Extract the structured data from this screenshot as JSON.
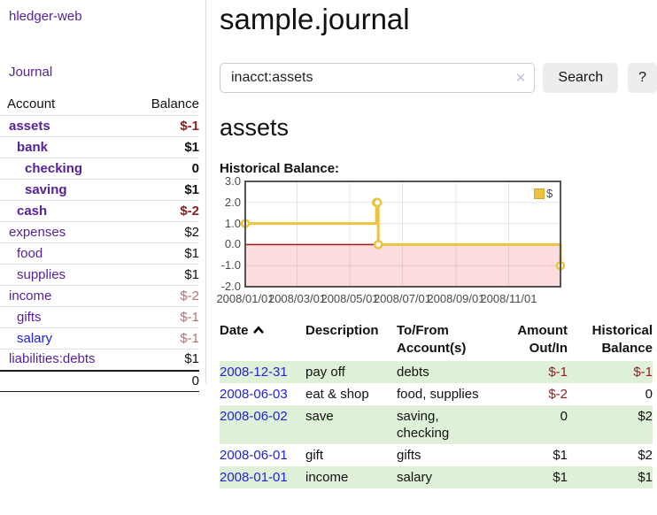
{
  "app": {
    "title": "hledger-web",
    "nav_journal": "Journal"
  },
  "sidebar": {
    "accounts_table": {
      "col_account": "Account",
      "col_balance": "Balance",
      "rows": [
        {
          "name": "assets",
          "depth": 1,
          "bold": true,
          "balance": "$-1",
          "neg": "strong"
        },
        {
          "name": "bank",
          "depth": 2,
          "bold": true,
          "balance": "$1"
        },
        {
          "name": "checking",
          "depth": 3,
          "bold": true,
          "balance": "0"
        },
        {
          "name": "saving",
          "depth": 3,
          "bold": true,
          "balance": "$1"
        },
        {
          "name": "cash",
          "depth": 2,
          "bold": true,
          "balance": "$-2",
          "neg": "strong"
        },
        {
          "name": "expenses",
          "depth": 1,
          "bold": false,
          "balance": "$2"
        },
        {
          "name": "food",
          "depth": 2,
          "bold": false,
          "balance": "$1"
        },
        {
          "name": "supplies",
          "depth": 2,
          "bold": false,
          "balance": "$1"
        },
        {
          "name": "income",
          "depth": 1,
          "bold": false,
          "balance": "$-2",
          "neg": "soft"
        },
        {
          "name": "gifts",
          "depth": 2,
          "bold": false,
          "balance": "$-1",
          "neg": "soft"
        },
        {
          "name": "salary",
          "depth": 2,
          "bold": false,
          "balance": "$-1",
          "neg": "soft",
          "link_color": "blue"
        },
        {
          "name": "liabilities:debts",
          "depth": 1,
          "bold": false,
          "balance": "$1"
        }
      ],
      "total": "0"
    }
  },
  "header": {
    "title": "sample.journal"
  },
  "search": {
    "value": "inacct:assets",
    "clear_icon": "✕",
    "button_label": "Search",
    "help_label": "?"
  },
  "account_page": {
    "heading": "assets",
    "chart_title": "Historical Balance:"
  },
  "chart_data": {
    "type": "line",
    "title": "Historical Balance:",
    "step": true,
    "series": [
      {
        "name": "$",
        "points": [
          [
            "2008-01-01",
            1
          ],
          [
            "2008-06-01",
            2
          ],
          [
            "2008-06-02",
            2
          ],
          [
            "2008-06-03",
            0
          ],
          [
            "2008-12-31",
            -1
          ]
        ]
      }
    ],
    "x_start": "2008-01-01",
    "x_days": 365,
    "x_ticks": [
      {
        "label": "2008/01/01",
        "date": "2008-01-01"
      },
      {
        "label": "2008/03/01",
        "date": "2008-03-01"
      },
      {
        "label": "2008/05/01",
        "date": "2008-05-01"
      },
      {
        "label": "2008/07/01",
        "date": "2008-07-01"
      },
      {
        "label": "2008/09/01",
        "date": "2008-09-01"
      },
      {
        "label": "2008/11/01",
        "date": "2008-11-01"
      }
    ],
    "y_ticks": [
      {
        "label": "3.0",
        "v": 3
      },
      {
        "label": "2.0",
        "v": 2
      },
      {
        "label": "1.0",
        "v": 1
      },
      {
        "label": "0.0",
        "v": 0
      },
      {
        "label": "-1.0",
        "v": -1
      },
      {
        "label": "-2.0",
        "v": -2
      }
    ],
    "ylim": [
      -2,
      3
    ],
    "grid": true,
    "legend": {
      "label": "$",
      "position": "top-right"
    },
    "colors": {
      "line": "#edc240",
      "marker_fill": "#ffffff",
      "negative_region": "#fcdcdc",
      "zero_line": "#a41419",
      "grid": "rgba(0,0,0,0.09)",
      "border": "#545454"
    }
  },
  "register": {
    "columns": {
      "date": "Date",
      "description": "Description",
      "accounts": "To/From Account(s)",
      "amount": "Amount Out/In",
      "balance": "Historical Balance"
    },
    "sort": "date-ascending",
    "rows": [
      {
        "date": "2008-12-31",
        "description": "pay off",
        "accounts": "debts",
        "amount": "$-1",
        "balance": "$-1"
      },
      {
        "date": "2008-06-03",
        "description": "eat & shop",
        "accounts": "food, supplies",
        "amount": "$-2",
        "balance": "0"
      },
      {
        "date": "2008-06-02",
        "description": "save",
        "accounts": "saving, checking",
        "amount": "0",
        "balance": "$2"
      },
      {
        "date": "2008-06-01",
        "description": "gift",
        "accounts": "gifts",
        "amount": "$1",
        "balance": "$2"
      },
      {
        "date": "2008-01-01",
        "description": "income",
        "accounts": "salary",
        "amount": "$1",
        "balance": "$1"
      }
    ]
  }
}
